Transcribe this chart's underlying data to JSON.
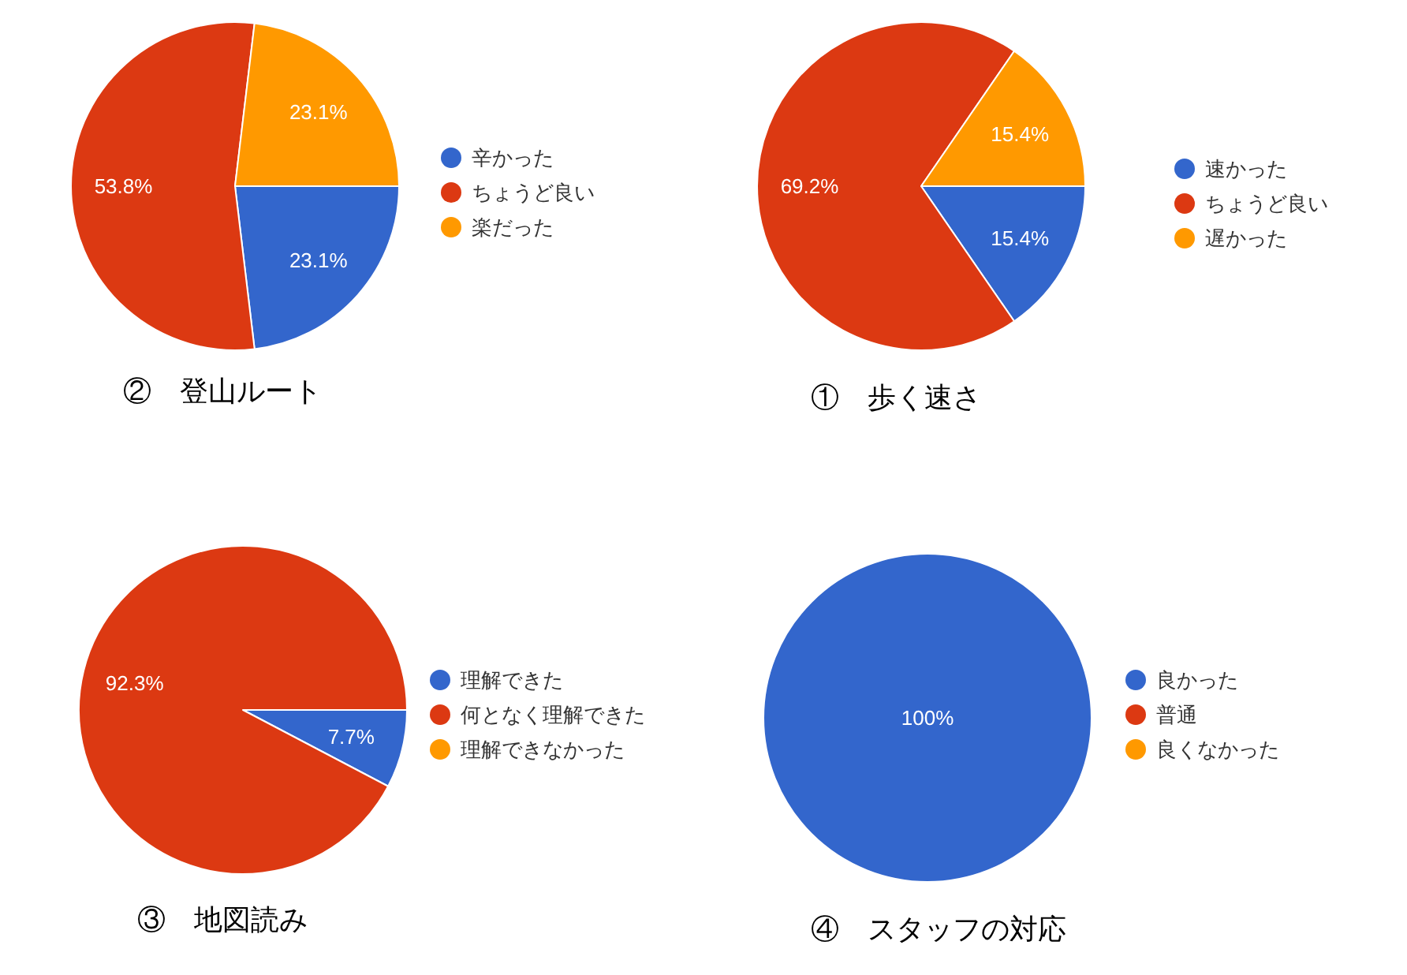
{
  "chart_data": [
    {
      "type": "pie",
      "title": "②　登山ルート",
      "categories": [
        "辛かった",
        "ちょうど良い",
        "楽だった"
      ],
      "values": [
        23.1,
        53.8,
        23.1
      ],
      "colors": [
        "#3366cc",
        "#dc3912",
        "#ff9900"
      ],
      "value_labels": [
        "23.1%",
        "53.8%",
        "23.1%"
      ],
      "legend": "right"
    },
    {
      "type": "pie",
      "title": "①　歩く速さ",
      "categories": [
        "速かった",
        "ちょうど良い",
        "遅かった"
      ],
      "values": [
        15.4,
        69.2,
        15.4
      ],
      "colors": [
        "#3366cc",
        "#dc3912",
        "#ff9900"
      ],
      "value_labels": [
        "15.4%",
        "69.2%",
        "15.4%"
      ],
      "legend": "right"
    },
    {
      "type": "pie",
      "title": "③　地図読み",
      "categories": [
        "理解できた",
        "何となく理解できた",
        "理解できなかった"
      ],
      "values": [
        7.7,
        92.3,
        0
      ],
      "colors": [
        "#3366cc",
        "#dc3912",
        "#ff9900"
      ],
      "value_labels": [
        "7.7%",
        "92.3%",
        null
      ],
      "legend": "right"
    },
    {
      "type": "pie",
      "title": "④　スタッフの対応",
      "categories": [
        "良かった",
        "普通",
        "良くなかった"
      ],
      "values": [
        100,
        0,
        0
      ],
      "colors": [
        "#3366cc",
        "#dc3912",
        "#ff9900"
      ],
      "value_labels": [
        "100%",
        null,
        null
      ],
      "legend": "right"
    }
  ]
}
